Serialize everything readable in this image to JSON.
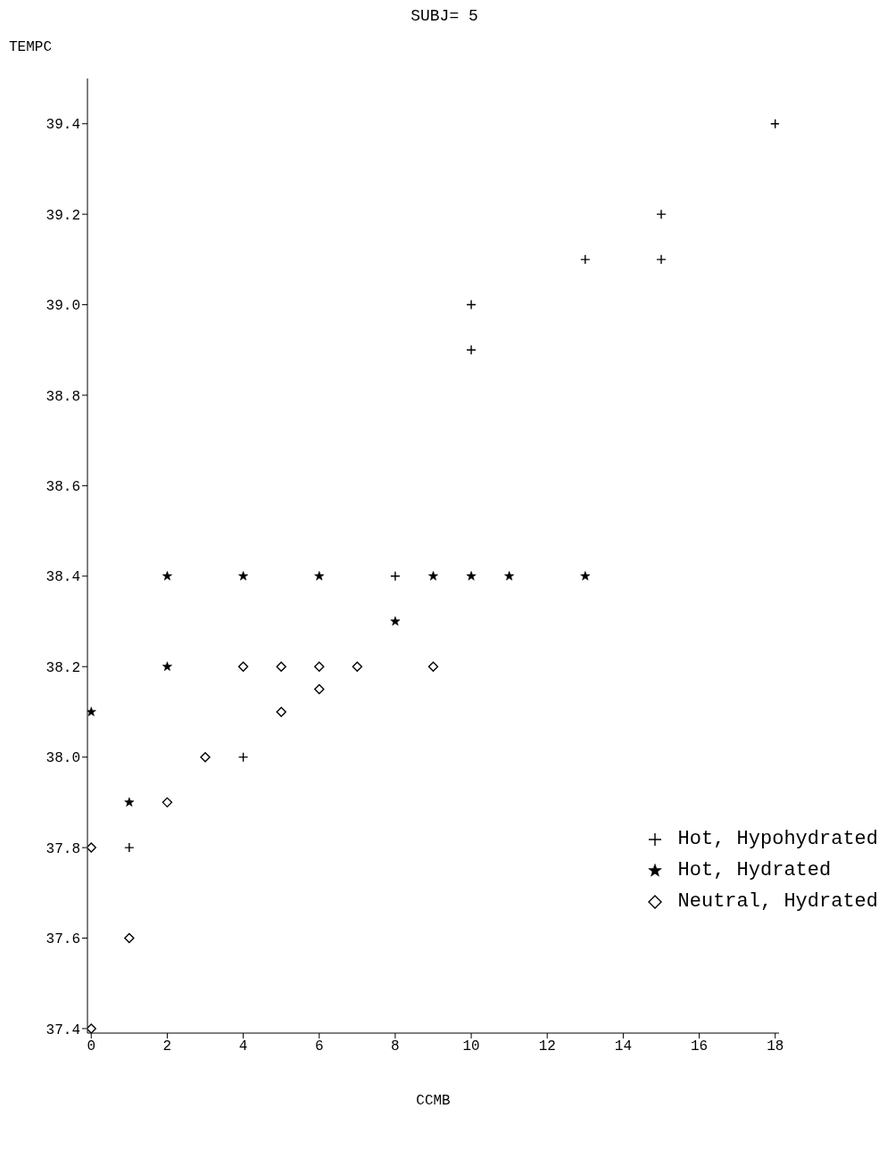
{
  "chart_data": {
    "type": "scatter",
    "title": "SUBJ= 5",
    "xlabel": "CCMB",
    "ylabel": "TEMPC",
    "xlim": [
      -0.1,
      18.1
    ],
    "xticks": [
      0,
      2,
      4,
      6,
      8,
      10,
      12,
      14,
      16,
      18
    ],
    "ylim": [
      37.39,
      39.5
    ],
    "yticks": [
      37.4,
      37.6,
      37.8,
      {
        "value": 38,
        "label": "38.0"
      },
      38.2,
      38.4,
      38.6,
      38.8,
      {
        "value": 39,
        "label": "39.0"
      },
      39.2,
      39.4
    ],
    "grid": false,
    "legend": "right",
    "series": [
      {
        "name": "Hot, Hypohydrated",
        "color": "#000000",
        "marker": "cross",
        "x": [
          1,
          4,
          7,
          8,
          10,
          10,
          13,
          15,
          15,
          18
        ],
        "values": [
          37.8,
          38.0,
          38.2,
          38.4,
          38.9,
          39.0,
          39.1,
          39.1,
          39.2,
          39.4
        ]
      },
      {
        "name": "Hot, Hydrated",
        "color": "#000000",
        "marker": "star",
        "x": [
          0,
          1,
          2,
          2,
          4,
          6,
          8,
          9,
          10,
          11,
          13
        ],
        "values": [
          38.1,
          37.9,
          38.2,
          38.4,
          38.4,
          38.4,
          38.3,
          38.4,
          38.4,
          38.4,
          38.4
        ]
      },
      {
        "name": "Neutral, Hydrated",
        "color": "#000000",
        "marker": "diamond",
        "x": [
          0,
          0,
          1,
          2,
          3,
          4,
          5,
          5,
          6,
          6,
          7,
          9
        ],
        "values": [
          37.4,
          37.8,
          37.6,
          37.9,
          38.0,
          38.2,
          38.1,
          38.2,
          38.15,
          38.2,
          38.2,
          38.2
        ]
      }
    ]
  }
}
